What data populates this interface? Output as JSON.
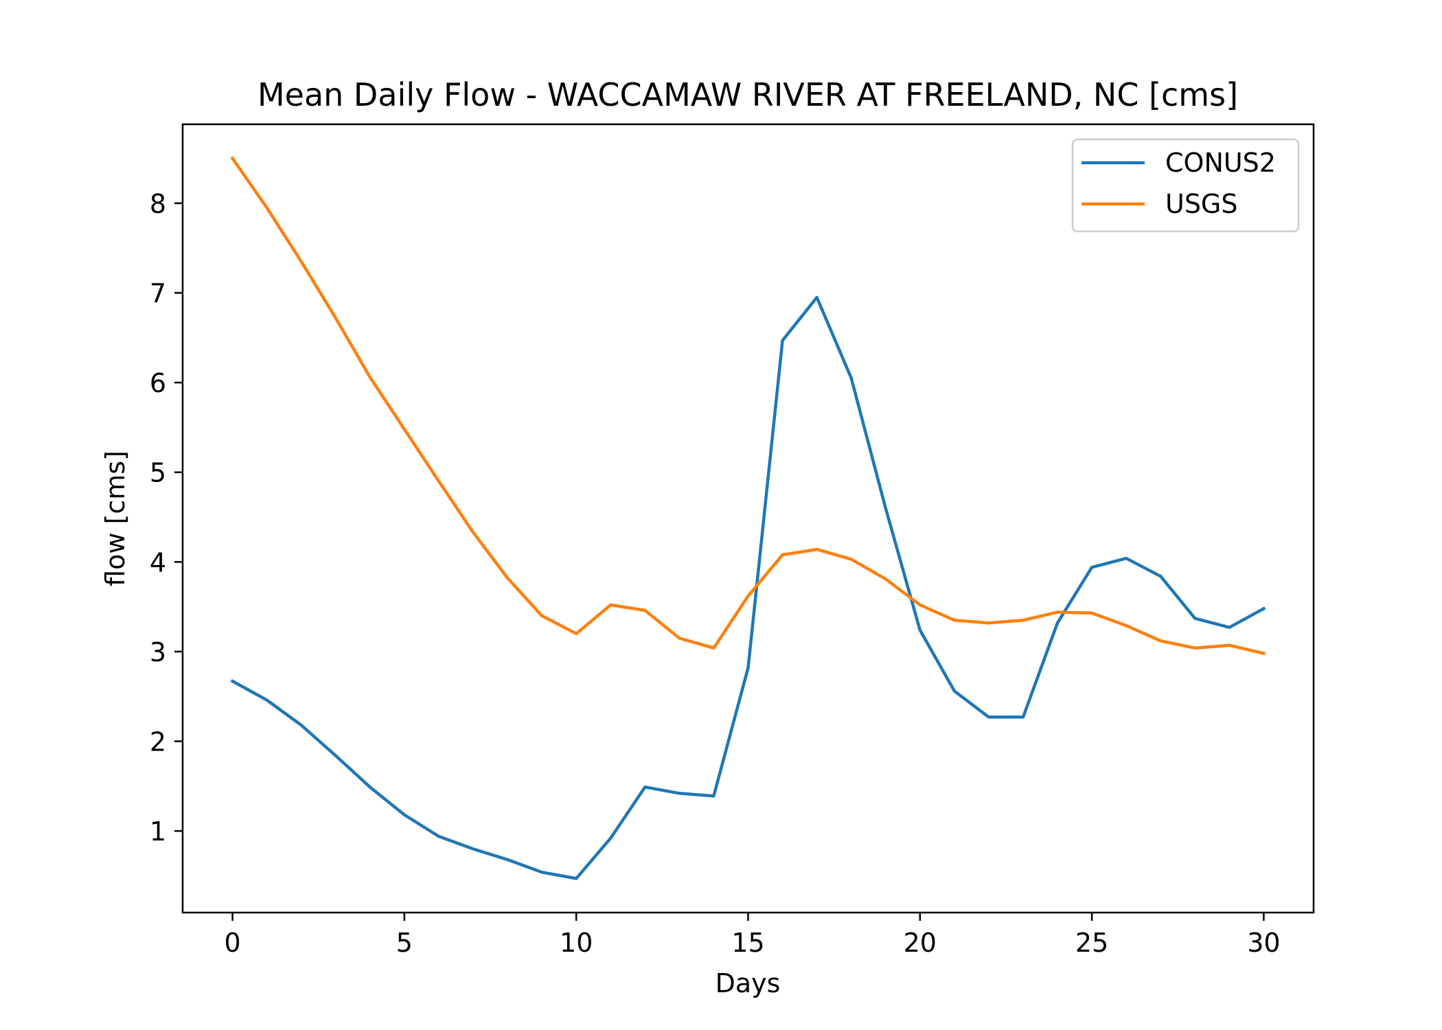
{
  "chart_data": {
    "type": "line",
    "title": "Mean Daily Flow - WACCAMAW RIVER AT FREELAND, NC [cms]",
    "xlabel": "Days",
    "ylabel": "flow [cms]",
    "xlim": [
      -1.45,
      31.45
    ],
    "ylim": [
      0.09,
      8.88
    ],
    "x_ticks": [
      0,
      5,
      10,
      15,
      20,
      25,
      30
    ],
    "y_ticks": [
      1,
      2,
      3,
      4,
      5,
      6,
      7,
      8
    ],
    "grid": false,
    "legend_position": "upper right",
    "x": [
      0,
      1,
      2,
      3,
      4,
      5,
      6,
      7,
      8,
      9,
      10,
      11,
      12,
      13,
      14,
      15,
      16,
      17,
      18,
      19,
      20,
      21,
      22,
      23,
      24,
      25,
      26,
      27,
      28,
      29,
      30
    ],
    "series": [
      {
        "name": "CONUS2",
        "color": "#1f77b4",
        "values": [
          2.67,
          2.46,
          2.18,
          1.84,
          1.49,
          1.18,
          0.94,
          0.8,
          0.68,
          0.54,
          0.47,
          0.92,
          1.49,
          1.42,
          1.39,
          2.82,
          6.47,
          6.95,
          6.05,
          4.6,
          3.24,
          2.56,
          2.27,
          2.27,
          3.32,
          3.94,
          4.04,
          3.84,
          3.37,
          3.27,
          3.48
        ]
      },
      {
        "name": "USGS",
        "color": "#ff7f0e",
        "values": [
          8.5,
          7.95,
          7.35,
          6.72,
          6.06,
          5.48,
          4.9,
          4.33,
          3.82,
          3.4,
          3.2,
          3.52,
          3.46,
          3.15,
          3.04,
          3.62,
          4.08,
          4.14,
          4.03,
          3.81,
          3.52,
          3.35,
          3.32,
          3.35,
          3.44,
          3.43,
          3.29,
          3.12,
          3.04,
          3.07,
          2.98
        ]
      }
    ]
  }
}
